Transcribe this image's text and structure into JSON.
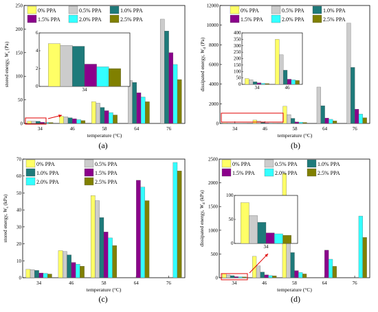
{
  "colors": {
    "0% PPA": "#ffff66",
    "0.5% PPA": "#cccccc",
    "1.0% PPA": "#1e7a7a",
    "1.5% PPA": "#8b008b",
    "2.0% PPA": "#33ffff",
    "2.5% PPA": "#808000"
  },
  "chart_data": [
    {
      "id": "a",
      "panel_label": "(a)",
      "type": "bar",
      "xlabel": "temperature (°C)",
      "ylabel_main": "stored energy, ",
      "ylabel_var": "W",
      "ylabel_sub": "s",
      "ylabel_unit": " (Pa)",
      "categories": [
        "34",
        "46",
        "58",
        "64",
        "76"
      ],
      "ylim": [
        0,
        250
      ],
      "yticks": [
        "0",
        "50",
        "100",
        "150",
        "200",
        "250"
      ],
      "legend_cols": 3,
      "series": [
        {
          "name": "0% PPA",
          "values": [
            4.8,
            15,
            46,
            null,
            null
          ]
        },
        {
          "name": "0.5% PPA",
          "values": [
            4.6,
            14,
            43,
            91,
            221
          ]
        },
        {
          "name": "1.0% PPA",
          "values": [
            4.5,
            12,
            34,
            87,
            196
          ]
        },
        {
          "name": "1.5% PPA",
          "values": [
            2.5,
            10,
            27,
            65,
            150
          ]
        },
        {
          "name": "2.0% PPA",
          "values": [
            2.2,
            8,
            23,
            56,
            125
          ]
        },
        {
          "name": "2.5% PPA",
          "values": [
            2.0,
            6,
            18,
            46,
            93
          ]
        }
      ],
      "inset": {
        "category": "34",
        "ylim": [
          0,
          6
        ],
        "yticks": [
          "0",
          "2",
          "4",
          "6"
        ],
        "values": [
          4.8,
          4.6,
          4.5,
          2.5,
          2.2,
          2.0
        ]
      }
    },
    {
      "id": "b",
      "panel_label": "(b)",
      "type": "bar",
      "xlabel": "temperature (°C)",
      "ylabel_main": "dissipated energy, ",
      "ylabel_var": "W",
      "ylabel_sub": "d",
      "ylabel_unit": " (Pa)",
      "categories": [
        "34",
        "46",
        "58",
        "64",
        "76"
      ],
      "ylim": [
        0,
        12000
      ],
      "yticks": [
        "0",
        "2000",
        "4000",
        "6000",
        "8000",
        "10000",
        "12000"
      ],
      "legend_cols": 3,
      "series": [
        {
          "name": "0% PPA",
          "values": [
            45,
            350,
            1750,
            null,
            null
          ]
        },
        {
          "name": "0.5% PPA",
          "values": [
            35,
            230,
            900,
            3700,
            10200
          ]
        },
        {
          "name": "1.0% PPA",
          "values": [
            20,
            110,
            520,
            1800,
            5700
          ]
        },
        {
          "name": "1.5% PPA",
          "values": [
            12,
            40,
            150,
            550,
            1450
          ]
        },
        {
          "name": "2.0% PPA",
          "values": [
            8,
            35,
            130,
            420,
            950
          ]
        },
        {
          "name": "2.5% PPA",
          "values": [
            6,
            30,
            100,
            260,
            580
          ]
        }
      ],
      "inset": {
        "categories": [
          "34",
          "46"
        ],
        "ylim": [
          0,
          400
        ],
        "yticks": [
          "0",
          "50",
          "100",
          "150",
          "200",
          "250",
          "300",
          "350",
          "400"
        ],
        "values": [
          [
            45,
            35,
            20,
            12,
            8,
            6
          ],
          [
            350,
            230,
            110,
            40,
            35,
            30
          ]
        ]
      }
    },
    {
      "id": "c",
      "panel_label": "(c)",
      "type": "bar",
      "xlabel": "temperature (°C)",
      "ylabel_main": "stored energy, ",
      "ylabel_var": "W",
      "ylabel_sub": "s",
      "ylabel_unit": " (kPa)",
      "categories": [
        "34",
        "46",
        "58",
        "64",
        "76"
      ],
      "ylim": [
        0,
        70
      ],
      "yticks": [
        "0",
        "10",
        "20",
        "30",
        "40",
        "50",
        "60",
        "70"
      ],
      "legend_cols": 2,
      "series": [
        {
          "name": "0% PPA",
          "values": [
            5,
            16,
            48.5,
            null,
            null
          ]
        },
        {
          "name": "0.5% PPA",
          "values": [
            4.8,
            15.5,
            45.5,
            null,
            null
          ]
        },
        {
          "name": "1.0% PPA",
          "values": [
            4.3,
            13.5,
            35.5,
            null,
            null
          ]
        },
        {
          "name": "1.5% PPA",
          "values": [
            2.8,
            9,
            27,
            57.5,
            null
          ]
        },
        {
          "name": "2.0% PPA",
          "values": [
            2.6,
            8,
            23.5,
            53.5,
            68
          ]
        },
        {
          "name": "2.5% PPA",
          "values": [
            2.2,
            6.8,
            19,
            45.5,
            63
          ]
        }
      ]
    },
    {
      "id": "d",
      "panel_label": "(d)",
      "type": "bar",
      "xlabel": "temperature (°C)",
      "ylabel_main": "dissipated energy, ",
      "ylabel_var": "W",
      "ylabel_sub": "d",
      "ylabel_unit": " (kPa)",
      "categories": [
        "34",
        "46",
        "58",
        "64",
        "76"
      ],
      "ylim": [
        0,
        2500
      ],
      "yticks": [
        "0",
        "500",
        "1000",
        "1500",
        "2000",
        "2500"
      ],
      "legend_cols": 3,
      "series": [
        {
          "name": "0% PPA",
          "values": [
            85,
            450,
            2200,
            null,
            null
          ]
        },
        {
          "name": "0.5% PPA",
          "values": [
            58,
            250,
            1100,
            null,
            null
          ]
        },
        {
          "name": "1.0% PPA",
          "values": [
            44,
            120,
            530,
            null,
            null
          ]
        },
        {
          "name": "1.5% PPA",
          "values": [
            22,
            60,
            150,
            580,
            null
          ]
        },
        {
          "name": "2.0% PPA",
          "values": [
            20,
            45,
            110,
            390,
            1300
          ]
        },
        {
          "name": "2.5% PPA",
          "values": [
            17,
            40,
            80,
            240,
            850
          ]
        }
      ],
      "inset": {
        "category": "34",
        "ylim": [
          0,
          100
        ],
        "yticks": [
          "0",
          "50",
          "100"
        ],
        "values": [
          85,
          58,
          44,
          22,
          20,
          17
        ]
      }
    }
  ]
}
